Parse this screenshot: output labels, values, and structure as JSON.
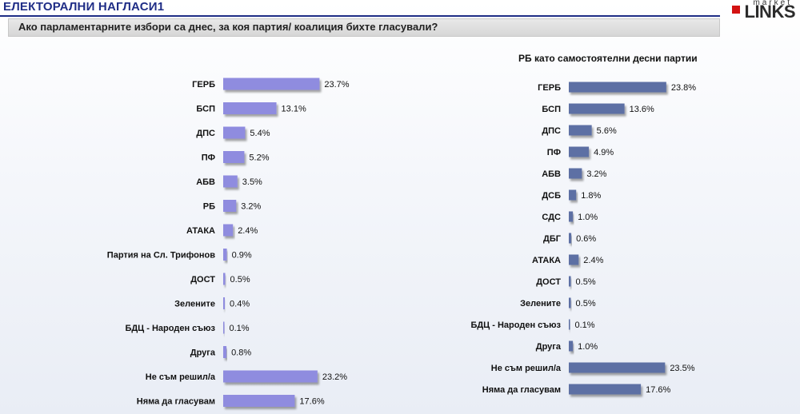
{
  "header": {
    "title": "ЕЛЕКТОРАЛНИ НАГЛАСИ1",
    "logo_small": "market",
    "logo_big": "LINKS",
    "question": "Ако парламентарните избори са днес, за коя партия/ коалиция бихте гласували?"
  },
  "colors": {
    "left_bar": "#8f8cdf",
    "right_bar": "#5d6fa4",
    "title": "#1f2d86",
    "logo_square": "#d31212"
  },
  "chart_data": [
    {
      "type": "bar",
      "orientation": "horizontal",
      "title": "",
      "categories": [
        "ГЕРБ",
        "БСП",
        "ДПС",
        "ПФ",
        "АБВ",
        "РБ",
        "АТАКА",
        "Партия на Сл. Трифонов",
        "ДОСТ",
        "Зелените",
        "БДЦ - Народен съюз",
        "Друга",
        "Не съм решил/а",
        "Няма да гласувам"
      ],
      "values": [
        23.7,
        13.1,
        5.4,
        5.2,
        3.5,
        3.2,
        2.4,
        0.9,
        0.5,
        0.4,
        0.1,
        0.8,
        23.2,
        17.6
      ],
      "labels": [
        "23.7%",
        "13.1%",
        "5.4%",
        "5.2%",
        "3.5%",
        "3.2%",
        "2.4%",
        "0.9%",
        "0.5%",
        "0.4%",
        "0.1%",
        "0.8%",
        "23.2%",
        "17.6%"
      ],
      "xlim": [
        0,
        25
      ],
      "grid": false
    },
    {
      "type": "bar",
      "orientation": "horizontal",
      "title": "РБ като самостоятелни десни партии",
      "categories": [
        "ГЕРБ",
        "БСП",
        "ДПС",
        "ПФ",
        "АБВ",
        "ДСБ",
        "СДС",
        "ДБГ",
        "АТАКА",
        "ДОСТ",
        "Зелените",
        "БДЦ - Народен съюз",
        "Друга",
        "Не съм решил/а",
        "Няма да гласувам"
      ],
      "values": [
        23.8,
        13.6,
        5.6,
        4.9,
        3.2,
        1.8,
        1.0,
        0.6,
        2.4,
        0.5,
        0.5,
        0.1,
        1.0,
        23.5,
        17.6
      ],
      "labels": [
        "23.8%",
        "13.6%",
        "5.6%",
        "4.9%",
        "3.2%",
        "1.8%",
        "1.0%",
        "0.6%",
        "2.4%",
        "0.5%",
        "0.5%",
        "0.1%",
        "1.0%",
        "23.5%",
        "17.6%"
      ],
      "xlim": [
        0,
        25
      ],
      "grid": false
    }
  ]
}
